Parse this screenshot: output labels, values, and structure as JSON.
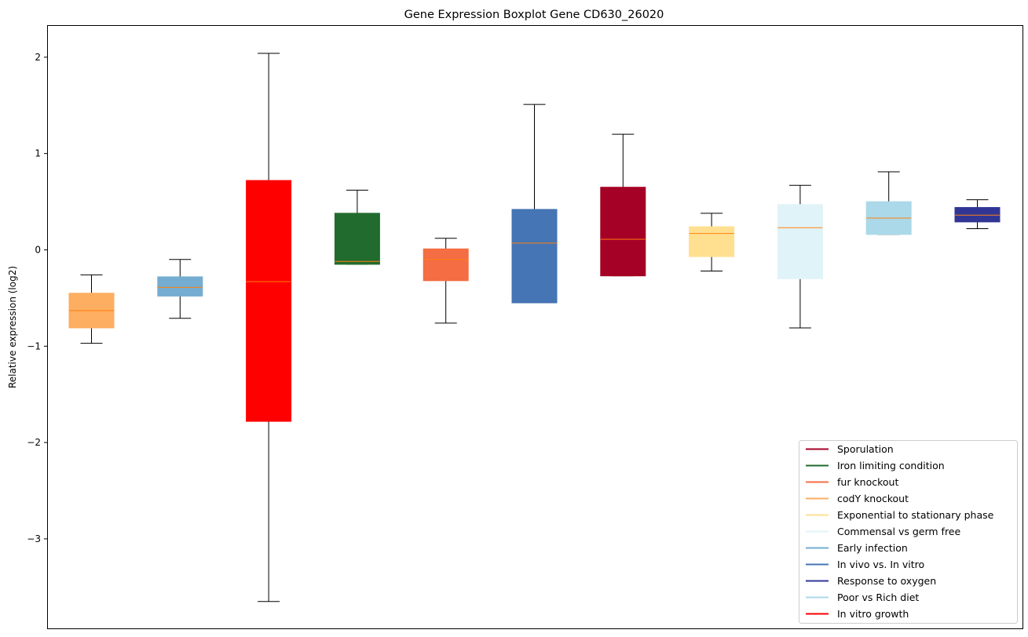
{
  "chart_data": {
    "type": "boxplot",
    "title": "Gene Expression Boxplot Gene CD630_26020",
    "xlabel": "",
    "ylabel": "Relative expression (log2)",
    "ylim": [
      -3.95,
      2.33
    ],
    "yticks": [
      2,
      1,
      0,
      -1,
      -2,
      -3
    ],
    "ytick_labels": [
      "2",
      "1",
      "0",
      "−1",
      "−2",
      "−3"
    ],
    "grid": false,
    "legend_position": "lower-right",
    "median_color": "#ff7f0e",
    "boxes": [
      {
        "name": "codY knockout",
        "color": "#fdae61",
        "whislo": -0.97,
        "q1": -0.81,
        "med": -0.63,
        "q3": -0.45,
        "whishi": -0.26
      },
      {
        "name": "Early infection",
        "color": "#74add1",
        "whislo": -0.71,
        "q1": -0.48,
        "med": -0.39,
        "q3": -0.28,
        "whishi": -0.1
      },
      {
        "name": "In vitro growth",
        "color": "#ff0000",
        "whislo": -3.65,
        "q1": -1.78,
        "med": -0.33,
        "q3": 0.72,
        "whishi": 2.04
      },
      {
        "name": "Iron limiting condition",
        "color": "#226b2e",
        "whislo": -0.15,
        "q1": -0.15,
        "med": -0.12,
        "q3": 0.38,
        "whishi": 0.62
      },
      {
        "name": "fur knockout",
        "color": "#f46d43",
        "whislo": -0.76,
        "q1": -0.32,
        "med": -0.1,
        "q3": 0.01,
        "whishi": 0.12
      },
      {
        "name": "In vivo vs. In vitro",
        "color": "#4575b4",
        "whislo": -0.55,
        "q1": -0.55,
        "med": 0.07,
        "q3": 0.42,
        "whishi": 1.51
      },
      {
        "name": "Sporulation",
        "color": "#a50026",
        "whislo": -0.27,
        "q1": -0.27,
        "med": 0.11,
        "q3": 0.65,
        "whishi": 1.2
      },
      {
        "name": "Exponential to stationary phase",
        "color": "#fee090",
        "whislo": -0.22,
        "q1": -0.07,
        "med": 0.17,
        "q3": 0.24,
        "whishi": 0.38
      },
      {
        "name": "Commensal vs germ free",
        "color": "#e0f3f8",
        "whislo": -0.81,
        "q1": -0.3,
        "med": 0.23,
        "q3": 0.47,
        "whishi": 0.67
      },
      {
        "name": "Poor vs Rich diet",
        "color": "#abd9e9",
        "whislo": 0.16,
        "q1": 0.16,
        "med": 0.33,
        "q3": 0.5,
        "whishi": 0.81
      },
      {
        "name": "Response to oxygen",
        "color": "#313695",
        "whislo": 0.22,
        "q1": 0.29,
        "med": 0.36,
        "q3": 0.44,
        "whishi": 0.52
      }
    ],
    "legend": [
      {
        "label": "Sporulation",
        "color": "#a50026"
      },
      {
        "label": "Iron limiting condition",
        "color": "#226b2e"
      },
      {
        "label": "fur knockout",
        "color": "#f46d43"
      },
      {
        "label": "codY knockout",
        "color": "#fdae61"
      },
      {
        "label": "Exponential to stationary phase",
        "color": "#fee090"
      },
      {
        "label": "Commensal vs germ free",
        "color": "#e0f3f8"
      },
      {
        "label": "Early infection",
        "color": "#74add1"
      },
      {
        "label": "In vivo vs. In vitro",
        "color": "#4575b4"
      },
      {
        "label": "Response to oxygen",
        "color": "#313695"
      },
      {
        "label": "Poor vs Rich diet",
        "color": "#abd9e9"
      },
      {
        "label": "In vitro growth",
        "color": "#ff0000"
      }
    ]
  }
}
